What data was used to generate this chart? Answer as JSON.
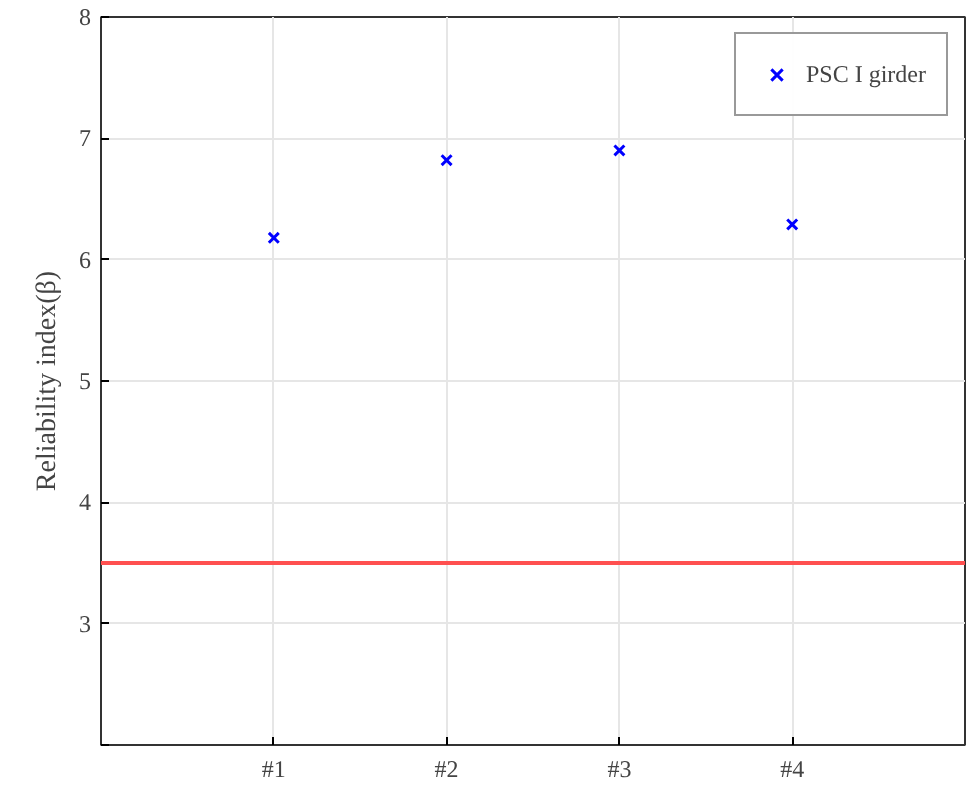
{
  "chart_data": {
    "type": "scatter",
    "ylabel": "Reliability index(β)",
    "categories": [
      "#1",
      "#2",
      "#3",
      "#4"
    ],
    "series": [
      {
        "name": "PSC I girder",
        "color": "#0000ff",
        "values": [
          6.18,
          6.82,
          6.9,
          6.29
        ]
      }
    ],
    "ylim": [
      2,
      8
    ],
    "yticks": [
      3,
      4,
      5,
      6,
      7,
      8,
      {
        "value": 2,
        "label": null
      }
    ],
    "ref_lines": [
      {
        "axis": "y",
        "value": 3.5,
        "label": null,
        "color": "#ff5050"
      }
    ],
    "grid": true,
    "legend": "top right",
    "marker": "cross"
  }
}
